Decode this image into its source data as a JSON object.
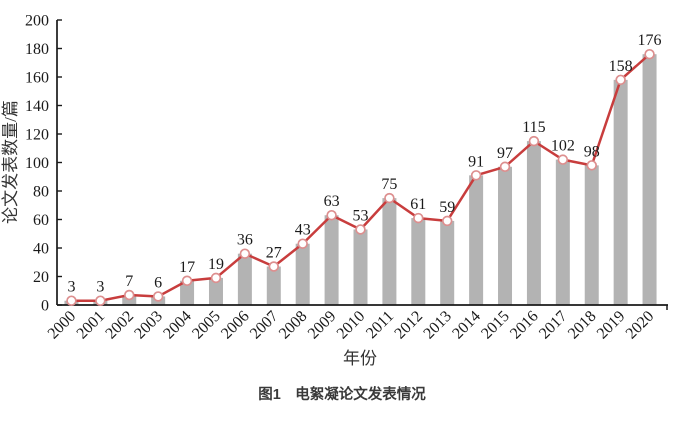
{
  "chart_data": {
    "type": "bar",
    "subtype": "bar-with-line-overlay",
    "categories": [
      "2000",
      "2001",
      "2002",
      "2003",
      "2004",
      "2005",
      "2006",
      "2007",
      "2008",
      "2009",
      "2010",
      "2011",
      "2012",
      "2013",
      "2014",
      "2015",
      "2016",
      "2017",
      "2018",
      "2019",
      "2020"
    ],
    "values": [
      3,
      3,
      7,
      6,
      17,
      19,
      36,
      27,
      43,
      63,
      53,
      75,
      61,
      59,
      91,
      97,
      115,
      102,
      98,
      158,
      176
    ],
    "title": "",
    "xlabel": "年份",
    "ylabel": "论文发表数量/篇",
    "ylim": [
      0,
      200
    ],
    "ytick_step": 20,
    "yticks": [
      0,
      20,
      40,
      60,
      80,
      100,
      120,
      140,
      160,
      180,
      200
    ],
    "grid": false,
    "legend": "none",
    "data_labels_shown": true,
    "xtick_rotation_deg": 45,
    "colors": {
      "bar_fill": "#b3b3b3",
      "line_stroke": "#c83d3d",
      "marker_fill": "#ffffff",
      "marker_stroke": "#dd8f8f",
      "axis": "#1a1a1a",
      "text": "#1a1a1a"
    }
  },
  "caption": "图1　电絮凝论文发表情况"
}
